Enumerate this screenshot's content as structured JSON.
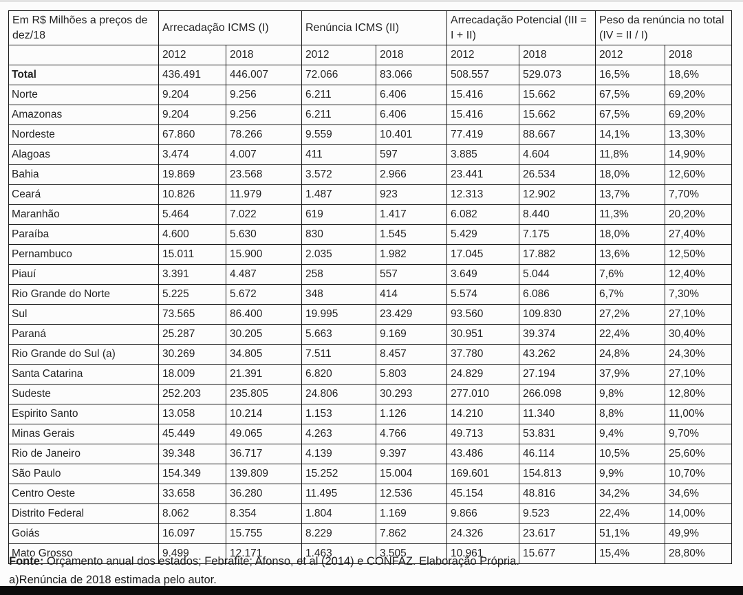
{
  "table": {
    "corner_header": "Em R$ Milhões a preços de dez/18",
    "groups": [
      "Arrecadação ICMS (I)",
      "Renúncia ICMS (II)",
      "Arrecadação Potencial (III = I + II)",
      "Peso da renúncia no total (IV = II / I)"
    ],
    "year_headers": [
      "2012",
      "2018",
      "2012",
      "2018",
      "2012",
      "2018",
      "2012",
      "2018"
    ],
    "rows": [
      {
        "label": "Total",
        "bold": true,
        "values": [
          "436.491",
          "446.007",
          "72.066",
          "83.066",
          "508.557",
          "529.073",
          "16,5%",
          "18,6%"
        ]
      },
      {
        "label": "Norte",
        "bold": false,
        "values": [
          "9.204",
          "9.256",
          "6.211",
          "6.406",
          "15.416",
          "15.662",
          "67,5%",
          "69,20%"
        ]
      },
      {
        "label": "Amazonas",
        "bold": false,
        "values": [
          "9.204",
          "9.256",
          "6.211",
          "6.406",
          "15.416",
          "15.662",
          "67,5%",
          "69,20%"
        ]
      },
      {
        "label": "Nordeste",
        "bold": false,
        "values": [
          "67.860",
          "78.266",
          "9.559",
          "10.401",
          "77.419",
          "88.667",
          "14,1%",
          "13,30%"
        ]
      },
      {
        "label": "Alagoas",
        "bold": false,
        "values": [
          "3.474",
          "4.007",
          "411",
          "597",
          "3.885",
          "4.604",
          "11,8%",
          "14,90%"
        ]
      },
      {
        "label": "Bahia",
        "bold": false,
        "values": [
          "19.869",
          "23.568",
          "3.572",
          "2.966",
          "23.441",
          "26.534",
          "18,0%",
          "12,60%"
        ]
      },
      {
        "label": "Ceará",
        "bold": false,
        "values": [
          "10.826",
          "11.979",
          "1.487",
          "923",
          "12.313",
          "12.902",
          "13,7%",
          "7,70%"
        ]
      },
      {
        "label": "Maranhão",
        "bold": false,
        "values": [
          "5.464",
          "7.022",
          "619",
          "1.417",
          "6.082",
          "8.440",
          "11,3%",
          "20,20%"
        ]
      },
      {
        "label": "Paraíba",
        "bold": false,
        "values": [
          "4.600",
          "5.630",
          "830",
          "1.545",
          "5.429",
          "7.175",
          "18,0%",
          "27,40%"
        ]
      },
      {
        "label": "Pernambuco",
        "bold": false,
        "values": [
          "15.011",
          "15.900",
          "2.035",
          "1.982",
          "17.045",
          "17.882",
          "13,6%",
          "12,50%"
        ]
      },
      {
        "label": "Piauí",
        "bold": false,
        "values": [
          "3.391",
          "4.487",
          "258",
          "557",
          "3.649",
          "5.044",
          "7,6%",
          "12,40%"
        ]
      },
      {
        "label": "Rio Grande do Norte",
        "bold": false,
        "values": [
          "5.225",
          "5.672",
          "348",
          "414",
          "5.574",
          "6.086",
          "6,7%",
          "7,30%"
        ]
      },
      {
        "label": "Sul",
        "bold": false,
        "values": [
          "73.565",
          "86.400",
          "19.995",
          "23.429",
          "93.560",
          "109.830",
          "27,2%",
          "27,10%"
        ]
      },
      {
        "label": "Paraná",
        "bold": false,
        "values": [
          "25.287",
          "30.205",
          "5.663",
          "9.169",
          "30.951",
          "39.374",
          "22,4%",
          "30,40%"
        ]
      },
      {
        "label": "Rio Grande do Sul (a)",
        "bold": false,
        "values": [
          "30.269",
          "34.805",
          "7.511",
          "8.457",
          "37.780",
          "43.262",
          "24,8%",
          "24,30%"
        ]
      },
      {
        "label": "Santa Catarina",
        "bold": false,
        "values": [
          "18.009",
          "21.391",
          "6.820",
          "5.803",
          "24.829",
          "27.194",
          "37,9%",
          "27,10%"
        ]
      },
      {
        "label": "Sudeste",
        "bold": false,
        "values": [
          "252.203",
          "235.805",
          "24.806",
          "30.293",
          "277.010",
          "266.098",
          "9,8%",
          "12,80%"
        ]
      },
      {
        "label": "Espirito Santo",
        "bold": false,
        "values": [
          "13.058",
          "10.214",
          "1.153",
          "1.126",
          "14.210",
          "11.340",
          "8,8%",
          "11,00%"
        ]
      },
      {
        "label": "Minas Gerais",
        "bold": false,
        "values": [
          "45.449",
          "49.065",
          "4.263",
          "4.766",
          "49.713",
          "53.831",
          "9,4%",
          "9,70%"
        ]
      },
      {
        "label": "Rio de Janeiro",
        "bold": false,
        "values": [
          "39.348",
          "36.717",
          "4.139",
          "9.397",
          "43.486",
          "46.114",
          "10,5%",
          "25,60%"
        ]
      },
      {
        "label": "São Paulo",
        "bold": false,
        "values": [
          "154.349",
          "139.809",
          "15.252",
          "15.004",
          "169.601",
          "154.813",
          "9,9%",
          "10,70%"
        ]
      },
      {
        "label": "Centro Oeste",
        "bold": false,
        "values": [
          "33.658",
          "36.280",
          "11.495",
          "12.536",
          "45.154",
          "48.816",
          "34,2%",
          "34,6%"
        ]
      },
      {
        "label": "Distrito Federal",
        "bold": false,
        "values": [
          "8.062",
          "8.354",
          "1.804",
          "1.169",
          "9.866",
          "9.523",
          "22,4%",
          "14,00%"
        ]
      },
      {
        "label": "Goiás",
        "bold": false,
        "values": [
          "16.097",
          "15.755",
          "8.229",
          "7.862",
          "24.326",
          "23.617",
          "51,1%",
          "49,9%"
        ]
      },
      {
        "label": "Mato Grosso",
        "bold": false,
        "values": [
          "9.499",
          "12.171",
          "1.463",
          "3.505",
          "10.961",
          "15.677",
          "15,4%",
          "28,80%"
        ]
      }
    ]
  },
  "footer": {
    "source_label": "Fonte:",
    "source_text": " Orçamento anual dos estados; Febrafite; Afonso, et al (2014) e CONFAZ. Elaboração Própria.",
    "note": "a)Renúncia de 2018 estimada pelo autor."
  }
}
